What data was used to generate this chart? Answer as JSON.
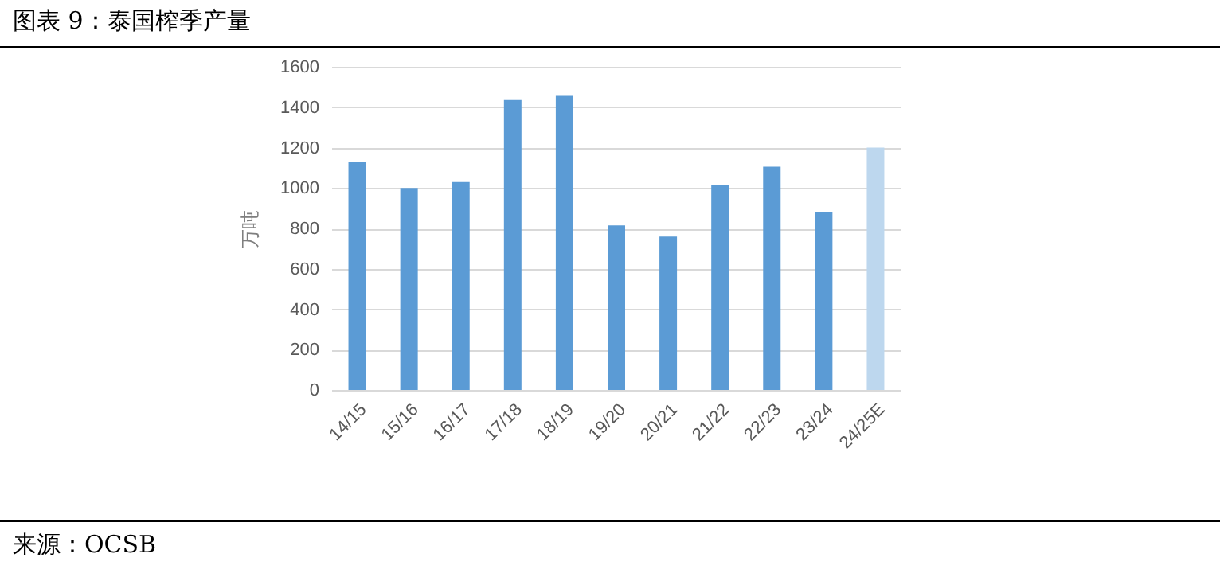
{
  "chart_data": {
    "type": "bar",
    "title": "图表 9：泰国榨季产量",
    "ylabel": "万吨",
    "categories": [
      "14/15",
      "15/16",
      "16/17",
      "17/18",
      "18/19",
      "19/20",
      "20/21",
      "21/22",
      "22/23",
      "23/24",
      "24/25E"
    ],
    "values": [
      1130,
      1000,
      1030,
      1435,
      1460,
      815,
      760,
      1015,
      1105,
      880,
      1200
    ],
    "colors": [
      "#5b9bd5",
      "#5b9bd5",
      "#5b9bd5",
      "#5b9bd5",
      "#5b9bd5",
      "#5b9bd5",
      "#5b9bd5",
      "#5b9bd5",
      "#5b9bd5",
      "#5b9bd5",
      "#bdd7ee"
    ],
    "ylim": [
      0,
      1600
    ],
    "yticks": [
      0,
      200,
      400,
      600,
      800,
      1000,
      1200,
      1400,
      1600
    ],
    "grid": "y",
    "legend": false,
    "annotations": [
      "来源：OCSB"
    ]
  }
}
